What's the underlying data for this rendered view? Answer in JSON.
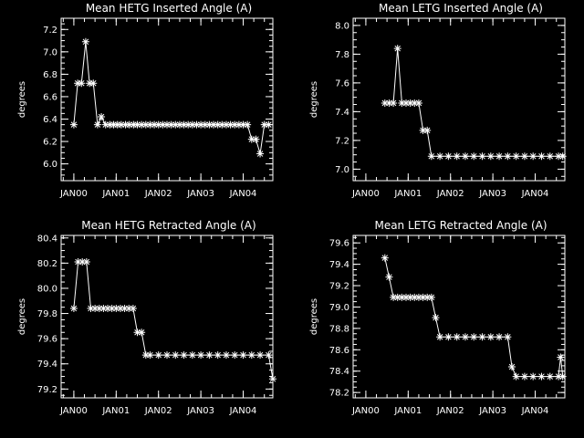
{
  "figure": {
    "background": "#000000",
    "foreground": "#ffffff",
    "xticks": [
      "JAN00",
      "JAN01",
      "JAN02",
      "JAN03",
      "JAN04"
    ]
  },
  "chart_data": [
    {
      "type": "line",
      "title": "Mean HETG Inserted Angle (A)",
      "ylabel": "degrees",
      "xlim": [
        1999.7,
        2004.7
      ],
      "ylim": [
        5.85,
        7.3
      ],
      "yticks": [
        6.0,
        6.2,
        6.4,
        6.6,
        6.8,
        7.0,
        7.2
      ],
      "xtick_values": [
        2000.0,
        2001.0,
        2002.0,
        2003.0,
        2004.0
      ],
      "xtick_labels": [
        "JAN00",
        "JAN01",
        "JAN02",
        "JAN03",
        "JAN04"
      ],
      "marker": "asterisk",
      "series": [
        {
          "x": [
            2000.0,
            2000.09,
            2000.18,
            2000.28,
            2000.37,
            2000.46,
            2000.56,
            2000.65,
            2000.75,
            2000.85,
            2000.94,
            2001.03,
            2001.12,
            2001.22,
            2001.31,
            2001.41,
            2001.5,
            2001.6,
            2001.7,
            2001.8,
            2001.9,
            2002.0,
            2002.1,
            2002.2,
            2002.3,
            2002.4,
            2002.5,
            2002.6,
            2002.7,
            2002.8,
            2002.9,
            2003.0,
            2003.1,
            2003.2,
            2003.3,
            2003.4,
            2003.5,
            2003.6,
            2003.7,
            2003.8,
            2003.9,
            2004.0,
            2004.1,
            2004.2,
            2004.3,
            2004.4,
            2004.5,
            2004.6
          ],
          "y": [
            6.35,
            6.72,
            6.72,
            7.09,
            6.72,
            6.72,
            6.35,
            6.42,
            6.35,
            6.35,
            6.35,
            6.35,
            6.35,
            6.35,
            6.35,
            6.35,
            6.35,
            6.35,
            6.35,
            6.35,
            6.35,
            6.35,
            6.35,
            6.35,
            6.35,
            6.35,
            6.35,
            6.35,
            6.35,
            6.35,
            6.35,
            6.35,
            6.35,
            6.35,
            6.35,
            6.35,
            6.35,
            6.35,
            6.35,
            6.35,
            6.35,
            6.35,
            6.35,
            6.22,
            6.22,
            6.09,
            6.35,
            6.35
          ]
        }
      ]
    },
    {
      "type": "line",
      "title": "Mean LETG Inserted Angle (A)",
      "ylabel": "degrees",
      "xlim": [
        1999.7,
        2004.7
      ],
      "ylim": [
        6.92,
        8.05
      ],
      "yticks": [
        7.0,
        7.2,
        7.4,
        7.6,
        7.8,
        8.0
      ],
      "xtick_values": [
        2000.0,
        2001.0,
        2002.0,
        2003.0,
        2004.0
      ],
      "xtick_labels": [
        "JAN00",
        "JAN01",
        "JAN02",
        "JAN03",
        "JAN04"
      ],
      "marker": "asterisk",
      "series": [
        {
          "x": [
            2000.45,
            2000.55,
            2000.65,
            2000.75,
            2000.85,
            2000.95,
            2001.05,
            2001.15,
            2001.25,
            2001.35,
            2001.45,
            2001.55,
            2001.75,
            2001.95,
            2002.15,
            2002.35,
            2002.55,
            2002.75,
            2002.95,
            2003.15,
            2003.35,
            2003.55,
            2003.75,
            2003.95,
            2004.15,
            2004.35,
            2004.55,
            2004.65
          ],
          "y": [
            7.46,
            7.46,
            7.46,
            7.84,
            7.46,
            7.46,
            7.46,
            7.46,
            7.46,
            7.27,
            7.27,
            7.09,
            7.09,
            7.09,
            7.09,
            7.09,
            7.09,
            7.09,
            7.09,
            7.09,
            7.09,
            7.09,
            7.09,
            7.09,
            7.09,
            7.09,
            7.09,
            7.09
          ]
        }
      ]
    },
    {
      "type": "line",
      "title": "Mean HETG Retracted Angle (A)",
      "ylabel": "degrees",
      "xlim": [
        1999.7,
        2004.7
      ],
      "ylim": [
        79.13,
        80.42
      ],
      "yticks": [
        79.2,
        79.4,
        79.6,
        79.8,
        80.0,
        80.2,
        80.4
      ],
      "xtick_values": [
        2000.0,
        2001.0,
        2002.0,
        2003.0,
        2004.0
      ],
      "xtick_labels": [
        "JAN00",
        "JAN01",
        "JAN02",
        "JAN03",
        "JAN04"
      ],
      "marker": "asterisk",
      "series": [
        {
          "x": [
            2000.0,
            2000.1,
            2000.2,
            2000.3,
            2000.4,
            2000.5,
            2000.6,
            2000.7,
            2000.8,
            2000.9,
            2001.0,
            2001.1,
            2001.2,
            2001.3,
            2001.4,
            2001.5,
            2001.6,
            2001.7,
            2001.8,
            2002.0,
            2002.2,
            2002.4,
            2002.6,
            2002.8,
            2003.0,
            2003.2,
            2003.4,
            2003.6,
            2003.8,
            2004.0,
            2004.2,
            2004.4,
            2004.6,
            2004.7
          ],
          "y": [
            79.84,
            80.21,
            80.21,
            80.21,
            79.84,
            79.84,
            79.84,
            79.84,
            79.84,
            79.84,
            79.84,
            79.84,
            79.84,
            79.84,
            79.84,
            79.65,
            79.65,
            79.47,
            79.47,
            79.47,
            79.47,
            79.47,
            79.47,
            79.47,
            79.47,
            79.47,
            79.47,
            79.47,
            79.47,
            79.47,
            79.47,
            79.47,
            79.47,
            79.28
          ]
        }
      ]
    },
    {
      "type": "line",
      "title": "Mean LETG Retracted Angle (A)",
      "ylabel": "degrees",
      "xlim": [
        1999.7,
        2004.7
      ],
      "ylim": [
        78.15,
        79.67
      ],
      "yticks": [
        78.2,
        78.4,
        78.6,
        78.8,
        79.0,
        79.2,
        79.4,
        79.6
      ],
      "xtick_values": [
        2000.0,
        2001.0,
        2002.0,
        2003.0,
        2004.0
      ],
      "xtick_labels": [
        "JAN00",
        "JAN01",
        "JAN02",
        "JAN03",
        "JAN04"
      ],
      "marker": "asterisk",
      "series": [
        {
          "x": [
            2000.45,
            2000.55,
            2000.65,
            2000.75,
            2000.85,
            2000.95,
            2001.05,
            2001.15,
            2001.25,
            2001.35,
            2001.45,
            2001.55,
            2001.65,
            2001.75,
            2001.95,
            2002.15,
            2002.35,
            2002.55,
            2002.75,
            2002.95,
            2003.15,
            2003.35,
            2003.45,
            2003.55,
            2003.75,
            2003.95,
            2004.15,
            2004.35,
            2004.55,
            2004.6,
            2004.65
          ],
          "y": [
            79.46,
            79.28,
            79.09,
            79.09,
            79.09,
            79.09,
            79.09,
            79.09,
            79.09,
            79.09,
            79.09,
            79.09,
            78.9,
            78.72,
            78.72,
            78.72,
            78.72,
            78.72,
            78.72,
            78.72,
            78.72,
            78.72,
            78.44,
            78.35,
            78.35,
            78.35,
            78.35,
            78.35,
            78.35,
            78.53,
            78.35
          ]
        }
      ]
    }
  ]
}
